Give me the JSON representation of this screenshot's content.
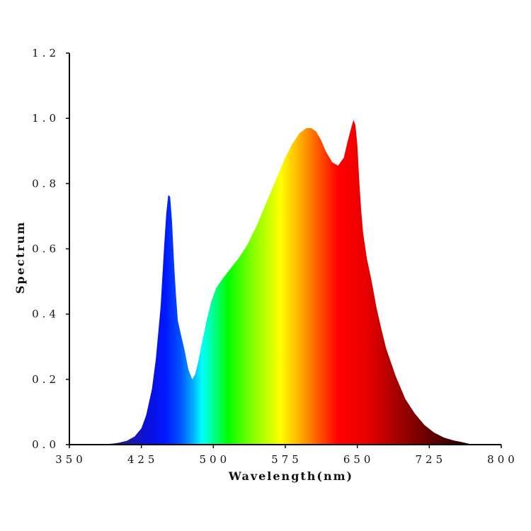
{
  "chart_data": {
    "type": "area",
    "title": "",
    "xlabel": "Wavelength(nm)",
    "ylabel": "Spectrum",
    "xlim": [
      350,
      800
    ],
    "ylim": [
      0,
      1.2
    ],
    "x_ticks": [
      350,
      425,
      500,
      575,
      650,
      725,
      800
    ],
    "x_tick_labels": [
      "350",
      "425",
      "500",
      "575",
      "650",
      "725",
      "800"
    ],
    "y_ticks": [
      0,
      0.2,
      0.4,
      0.6,
      0.8,
      1.0,
      1.2
    ],
    "y_tick_labels": [
      "0.0",
      "0.2",
      "0.4",
      "0.6",
      "0.8",
      "1.0",
      "1.2"
    ],
    "grid": false,
    "fill": "wavelength-gradient",
    "series": [
      {
        "x": [
          380,
          395,
          402,
          410,
          418,
          425,
          430,
          436,
          440,
          445,
          447,
          449,
          451,
          453,
          455,
          457,
          459,
          461,
          463,
          466,
          470,
          474,
          478,
          481,
          484,
          488,
          493,
          498,
          503,
          510,
          518,
          526,
          535,
          545,
          555,
          565,
          575,
          582,
          590,
          597,
          602,
          607,
          612,
          617,
          624,
          630,
          636,
          640,
          644,
          646,
          648,
          650,
          652,
          654,
          656,
          660,
          665,
          670,
          675,
          680,
          690,
          700,
          710,
          720,
          730,
          740,
          750,
          760,
          770
        ],
        "y": [
          0.0,
          0.003,
          0.006,
          0.012,
          0.025,
          0.05,
          0.09,
          0.17,
          0.26,
          0.42,
          0.52,
          0.62,
          0.71,
          0.765,
          0.76,
          0.68,
          0.56,
          0.46,
          0.38,
          0.34,
          0.29,
          0.23,
          0.2,
          0.215,
          0.25,
          0.31,
          0.38,
          0.44,
          0.48,
          0.51,
          0.54,
          0.57,
          0.61,
          0.67,
          0.74,
          0.81,
          0.88,
          0.92,
          0.955,
          0.97,
          0.97,
          0.96,
          0.935,
          0.9,
          0.865,
          0.855,
          0.88,
          0.93,
          0.975,
          0.995,
          0.98,
          0.92,
          0.81,
          0.72,
          0.65,
          0.57,
          0.5,
          0.42,
          0.355,
          0.295,
          0.21,
          0.14,
          0.095,
          0.06,
          0.037,
          0.022,
          0.013,
          0.007,
          0.0
        ]
      }
    ]
  }
}
